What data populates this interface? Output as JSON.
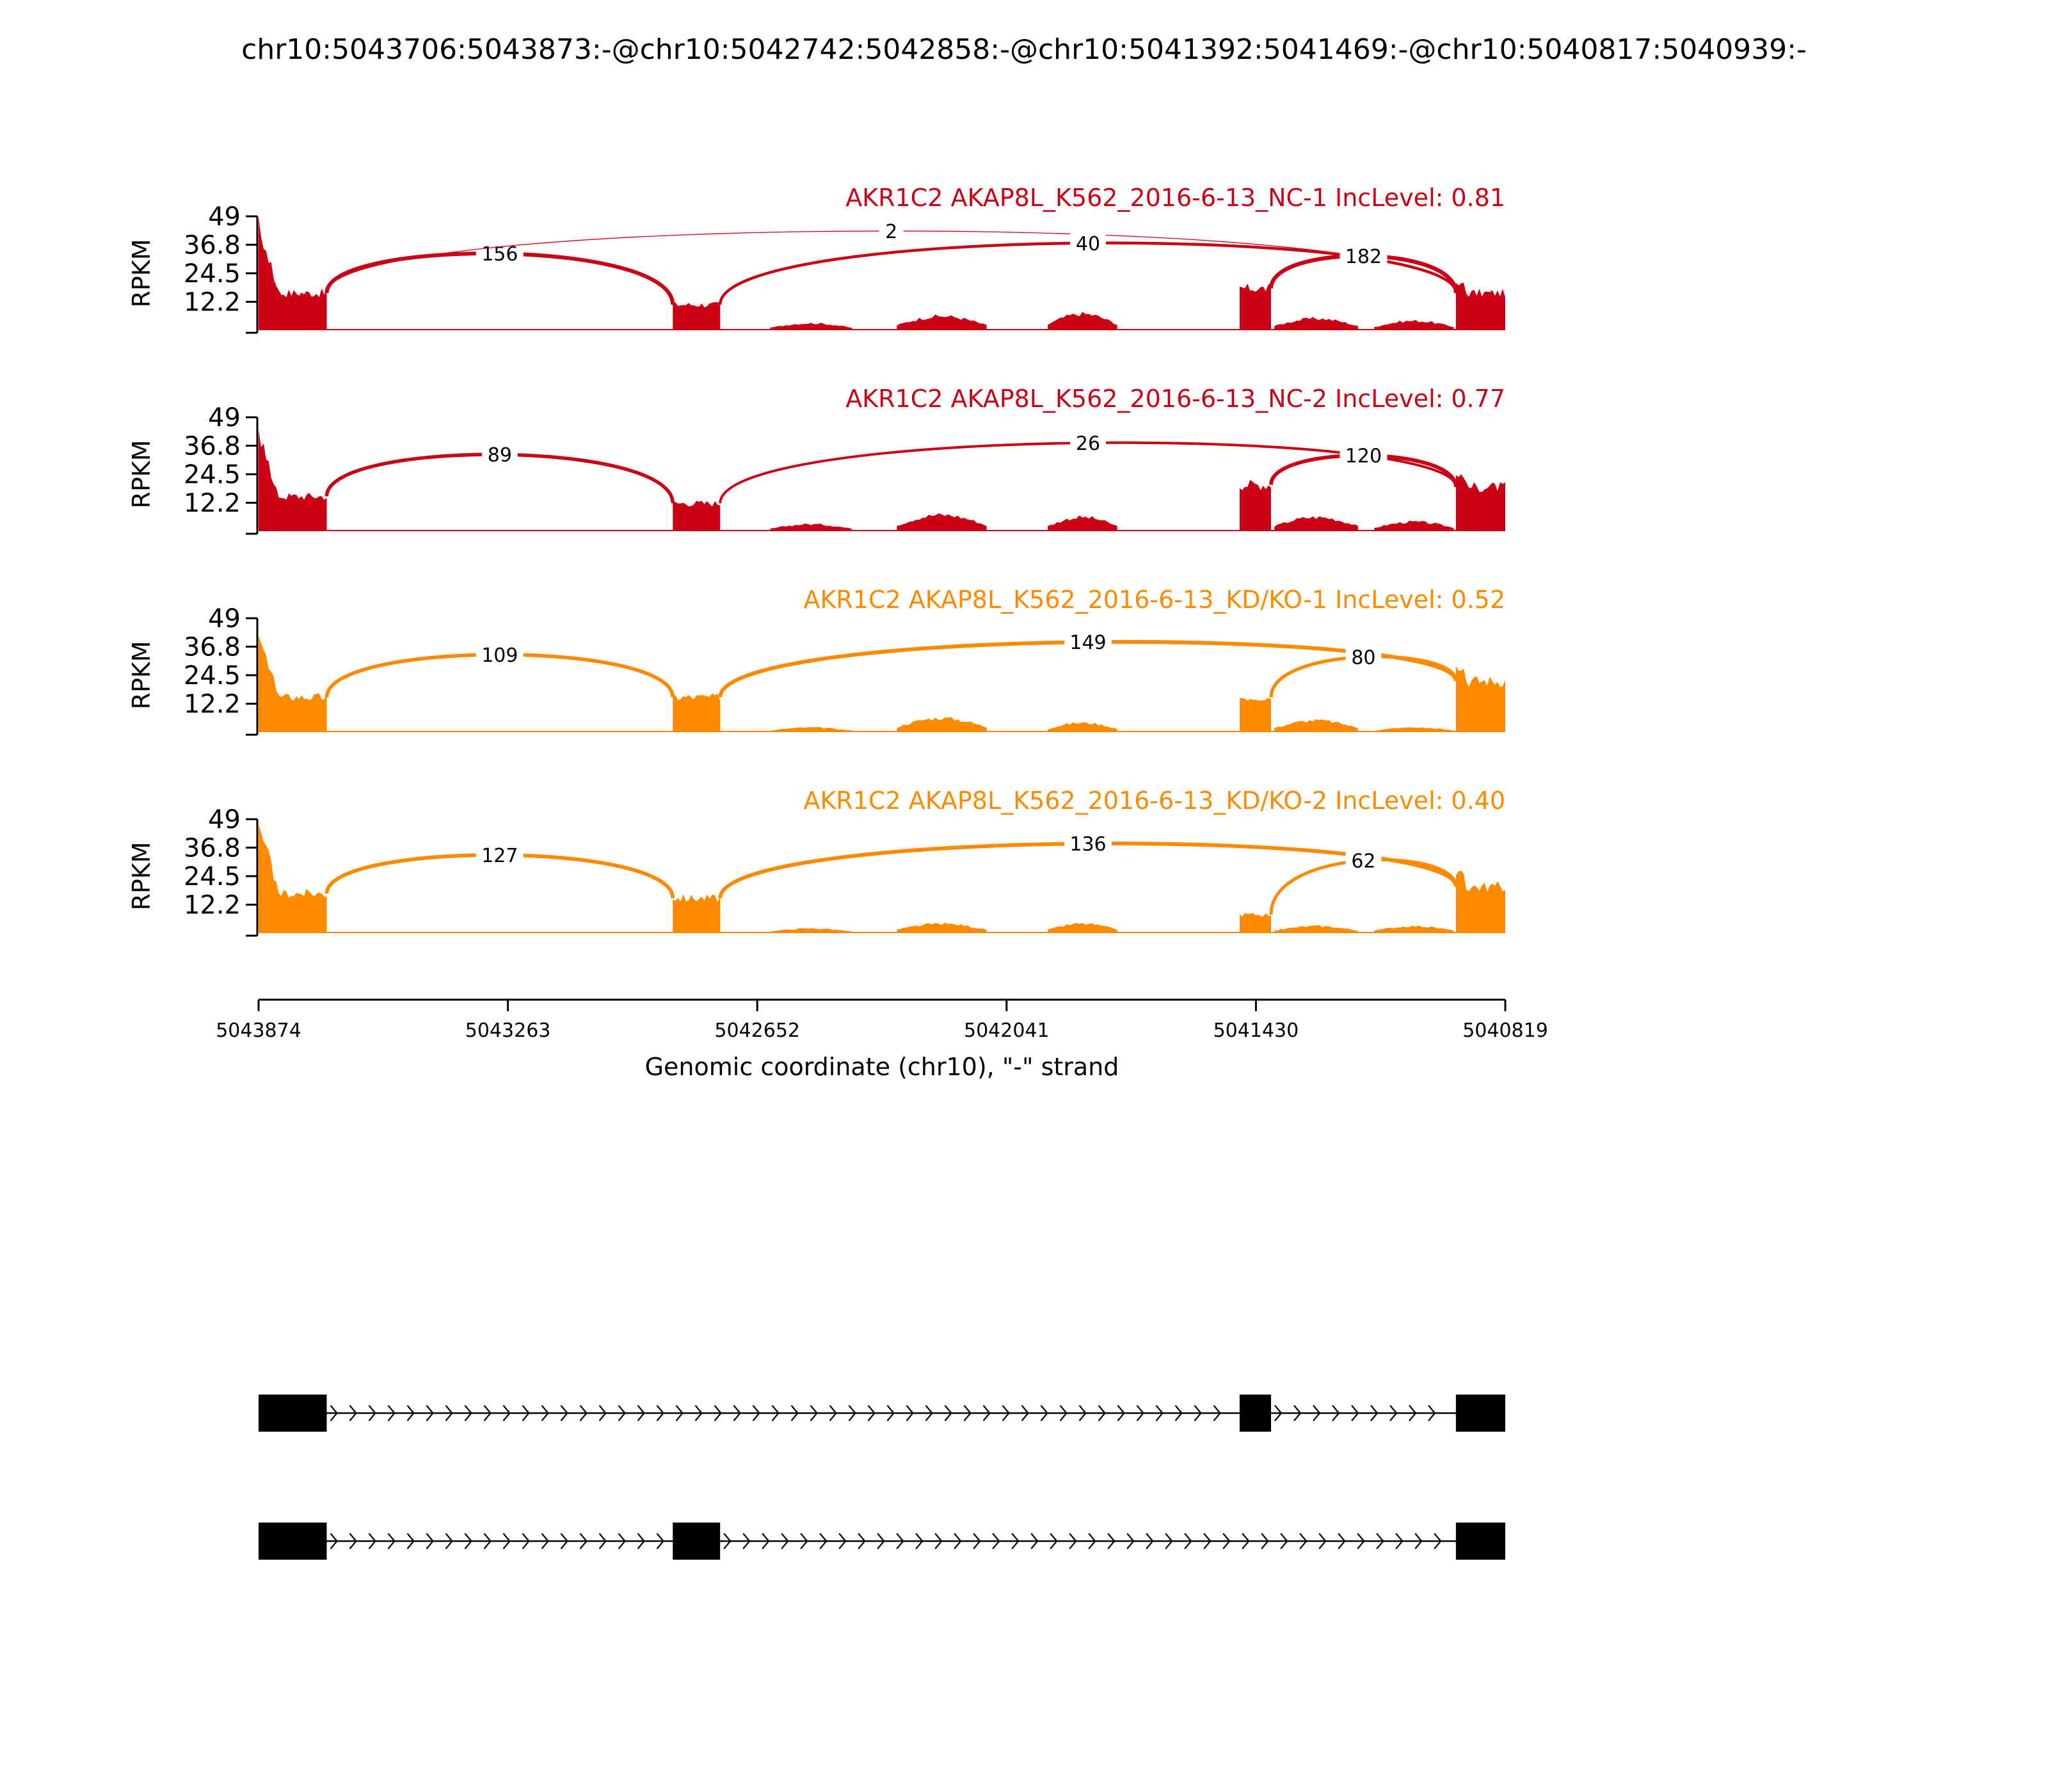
{
  "title": "chr10:5043706:5043873:-@chr10:5042742:5042858:-@chr10:5041392:5041469:-@chr10:5040817:5040939:-",
  "colors": {
    "nc": "#cc0015",
    "kd": "#ff8a00",
    "axis": "#000000",
    "exon": "#000000"
  },
  "chart_data": {
    "type": "area",
    "title": "chr10:5043706:5043873:-@chr10:5042742:5042858:-@chr10:5041392:5041469:-@chr10:5040817:5040939:-",
    "xlabel": "Genomic coordinate (chr10), \"-\" strand",
    "ylabel": "RPKM",
    "xlim": [
      5043874,
      5040819
    ],
    "x_reversed": true,
    "xticks": [
      5043874,
      5043263,
      5042652,
      5042041,
      5041430,
      5040819
    ],
    "xtick_labels": [
      "5043874",
      "5043263",
      "5042652",
      "5042041",
      "5041430",
      "5040819"
    ],
    "ylim": [
      0,
      49
    ],
    "yticks": [
      12.2,
      24.5,
      36.8,
      49
    ],
    "ytick_labels": [
      "12.2",
      "24.5",
      "36.8",
      "49"
    ],
    "tracks": [
      {
        "label": "AKR1C2 AKAP8L_K562_2016-6-13_NC-1 IncLevel: 0.81",
        "color_key": "nc",
        "exons": [
          {
            "from": 5043874,
            "to": 5043707,
            "level": 16
          },
          {
            "from": 5042859,
            "to": 5042743,
            "level": 11
          },
          {
            "from": 5041470,
            "to": 5041393,
            "level": 18
          },
          {
            "from": 5040940,
            "to": 5040819,
            "level": 16
          }
        ],
        "bumps": [
          {
            "from": 5042620,
            "to": 5042420,
            "level": 3
          },
          {
            "from": 5042310,
            "to": 5042090,
            "level": 6
          },
          {
            "from": 5041940,
            "to": 5041770,
            "level": 7
          },
          {
            "from": 5041385,
            "to": 5041180,
            "level": 5
          },
          {
            "from": 5041140,
            "to": 5040945,
            "level": 4
          }
        ],
        "junctions": [
          {
            "from": 5043707,
            "to": 5042859,
            "count": "156"
          },
          {
            "from": 5043707,
            "to": 5040940,
            "count": "2"
          },
          {
            "from": 5042743,
            "to": 5040940,
            "count": "40"
          },
          {
            "from": 5041393,
            "to": 5040940,
            "count": "182"
          }
        ]
      },
      {
        "label": "AKR1C2 AKAP8L_K562_2016-6-13_NC-2 IncLevel: 0.77",
        "color_key": "nc",
        "exons": [
          {
            "from": 5043874,
            "to": 5043707,
            "level": 15
          },
          {
            "from": 5042859,
            "to": 5042743,
            "level": 12
          },
          {
            "from": 5041470,
            "to": 5041393,
            "level": 20
          },
          {
            "from": 5040940,
            "to": 5040819,
            "level": 19
          }
        ],
        "bumps": [
          {
            "from": 5042620,
            "to": 5042420,
            "level": 3
          },
          {
            "from": 5042310,
            "to": 5042090,
            "level": 7
          },
          {
            "from": 5041940,
            "to": 5041770,
            "level": 6
          },
          {
            "from": 5041385,
            "to": 5041180,
            "level": 6
          },
          {
            "from": 5041140,
            "to": 5040945,
            "level": 4
          }
        ],
        "junctions": [
          {
            "from": 5043707,
            "to": 5042859,
            "count": "89"
          },
          {
            "from": 5042743,
            "to": 5040940,
            "count": "26"
          },
          {
            "from": 5041393,
            "to": 5040940,
            "count": "120"
          }
        ]
      },
      {
        "label": "AKR1C2 AKAP8L_K562_2016-6-13_KD/KO-1 IncLevel: 0.52",
        "color_key": "kd",
        "exons": [
          {
            "from": 5043874,
            "to": 5043707,
            "level": 15
          },
          {
            "from": 5042859,
            "to": 5042743,
            "level": 15
          },
          {
            "from": 5041470,
            "to": 5041393,
            "level": 15
          },
          {
            "from": 5040940,
            "to": 5040819,
            "level": 22
          }
        ],
        "bumps": [
          {
            "from": 5042620,
            "to": 5042420,
            "level": 2
          },
          {
            "from": 5042310,
            "to": 5042090,
            "level": 6
          },
          {
            "from": 5041940,
            "to": 5041770,
            "level": 4
          },
          {
            "from": 5041385,
            "to": 5041180,
            "level": 5
          },
          {
            "from": 5041140,
            "to": 5040945,
            "level": 2
          }
        ],
        "junctions": [
          {
            "from": 5043707,
            "to": 5042859,
            "count": "109"
          },
          {
            "from": 5042743,
            "to": 5040940,
            "count": "149"
          },
          {
            "from": 5041393,
            "to": 5040940,
            "count": "80"
          }
        ]
      },
      {
        "label": "AKR1C2 AKAP8L_K562_2016-6-13_KD/KO-2 IncLevel: 0.40",
        "color_key": "kd",
        "exons": [
          {
            "from": 5043874,
            "to": 5043707,
            "level": 17
          },
          {
            "from": 5042859,
            "to": 5042743,
            "level": 15
          },
          {
            "from": 5041470,
            "to": 5041393,
            "level": 8
          },
          {
            "from": 5040940,
            "to": 5040819,
            "level": 20
          }
        ],
        "bumps": [
          {
            "from": 5042620,
            "to": 5042420,
            "level": 2
          },
          {
            "from": 5042310,
            "to": 5042090,
            "level": 4
          },
          {
            "from": 5041940,
            "to": 5041770,
            "level": 4
          },
          {
            "from": 5041385,
            "to": 5041180,
            "level": 3
          },
          {
            "from": 5041140,
            "to": 5040945,
            "level": 3
          }
        ],
        "junctions": [
          {
            "from": 5043707,
            "to": 5042859,
            "count": "127"
          },
          {
            "from": 5042743,
            "to": 5040940,
            "count": "136"
          },
          {
            "from": 5041393,
            "to": 5040940,
            "count": "62"
          }
        ]
      }
    ],
    "isoforms": [
      {
        "exons": [
          [
            5043874,
            5043707
          ],
          [
            5041470,
            5041393
          ],
          [
            5040940,
            5040819
          ]
        ]
      },
      {
        "exons": [
          [
            5043874,
            5043707
          ],
          [
            5042859,
            5042743
          ],
          [
            5040940,
            5040819
          ]
        ]
      }
    ]
  }
}
